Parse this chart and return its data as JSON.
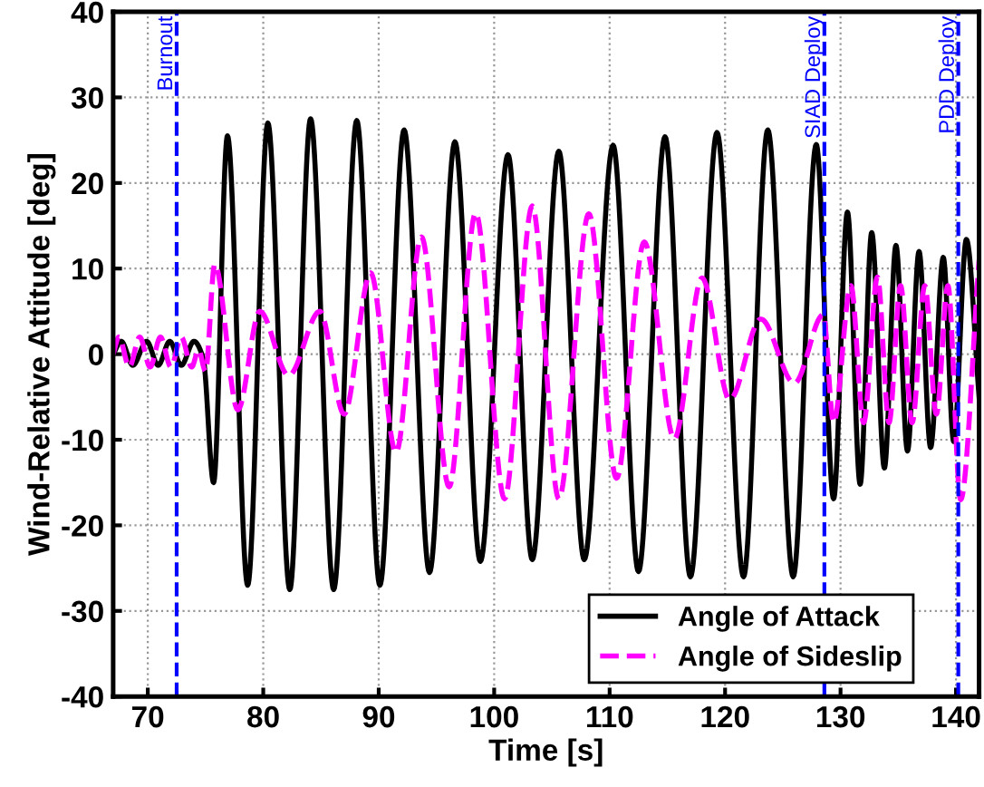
{
  "chart_data": {
    "type": "line",
    "xlabel": "Time [s]",
    "ylabel": "Wind-Relative Attitude [deg]",
    "xlim": [
      67,
      142
    ],
    "xticks": [
      70,
      80,
      90,
      100,
      110,
      120,
      130,
      140
    ],
    "ylim": [
      -40,
      40
    ],
    "yticks": [
      -40,
      -30,
      -20,
      -10,
      0,
      10,
      20,
      30,
      40
    ],
    "grid": true,
    "legend": "bottom right",
    "series": [
      {
        "name": "Angle of Attack",
        "color": "#000000",
        "line_style": "solid",
        "x": [
          67.0,
          67.7,
          68.7,
          69.9,
          70.9,
          71.9,
          72.9,
          74.0,
          74.8,
          75.7,
          76.9,
          78.65,
          80.4,
          82.3,
          84.1,
          86.1,
          88.1,
          90.1,
          92.2,
          94.4,
          96.6,
          98.8,
          101.2,
          103.3,
          105.6,
          107.8,
          110.3,
          112.5,
          114.8,
          117.0,
          119.3,
          121.6,
          123.7,
          125.9,
          127.9,
          129.4,
          130.6,
          131.7,
          132.7,
          133.8,
          134.8,
          135.8,
          136.8,
          137.8,
          138.9,
          139.8,
          140.9,
          142.0
        ],
        "values": [
          0,
          1.5,
          -1.3,
          1.5,
          -1.3,
          1.5,
          -1.3,
          1.5,
          -0.5,
          -15,
          25.5,
          -27,
          27,
          -27.5,
          27.5,
          -27.5,
          27.3,
          -27,
          26.2,
          -25.5,
          24.8,
          -24.2,
          23.3,
          -24,
          23.7,
          -24,
          24.4,
          -25.4,
          25.4,
          -26,
          25.9,
          -26,
          26.2,
          -26,
          24.5,
          -16.9,
          16.6,
          -15.2,
          14.2,
          -13.3,
          12.7,
          -11.3,
          12.0,
          -10.9,
          11.3,
          -10.2,
          13.4,
          -5
        ]
      },
      {
        "name": "Angle of Sideslip",
        "color": "#ff00ff",
        "line_style": "dashed",
        "x": [
          67.0,
          67.5,
          68.4,
          69.3,
          70.2,
          71.1,
          72.0,
          72.9,
          73.8,
          74.4,
          75.0,
          75.8,
          77.8,
          79.7,
          82.2,
          84.9,
          87.0,
          89.3,
          91.5,
          93.7,
          96.1,
          98.4,
          100.9,
          103.3,
          105.6,
          108.2,
          110.6,
          113.0,
          115.6,
          118.0,
          120.4,
          123.1,
          126.0,
          128.5,
          129.4,
          130.9,
          132.0,
          133.2,
          134.2,
          135.2,
          136.2,
          137.3,
          138.3,
          139.3,
          140.4,
          142.0
        ],
        "values": [
          0,
          2,
          -1.5,
          2,
          -1.5,
          2,
          -1.5,
          2,
          -1.5,
          0.5,
          -2,
          10.5,
          -6.5,
          5,
          -2.5,
          5,
          -7,
          9.5,
          -11.5,
          13.7,
          -15.5,
          16.5,
          -16.9,
          17.3,
          -16.9,
          16.4,
          -14.5,
          13.1,
          -9.9,
          8.9,
          -5.3,
          4.1,
          -3.4,
          4.6,
          -8,
          8,
          -8,
          9,
          -8,
          8,
          -8,
          8,
          -7,
          8,
          -17,
          11
        ]
      }
    ],
    "ref_lines": [
      {
        "axis": "x",
        "value": 72.5,
        "label": "Burnout",
        "color": "#0000ff",
        "line_style": "dashed"
      },
      {
        "axis": "x",
        "value": 128.6,
        "label": "SIAD Deploy",
        "color": "#0000ff",
        "line_style": "dashed"
      },
      {
        "axis": "x",
        "value": 140.2,
        "label": "PDD Deploy",
        "color": "#0000ff",
        "line_style": "dashed"
      }
    ]
  }
}
